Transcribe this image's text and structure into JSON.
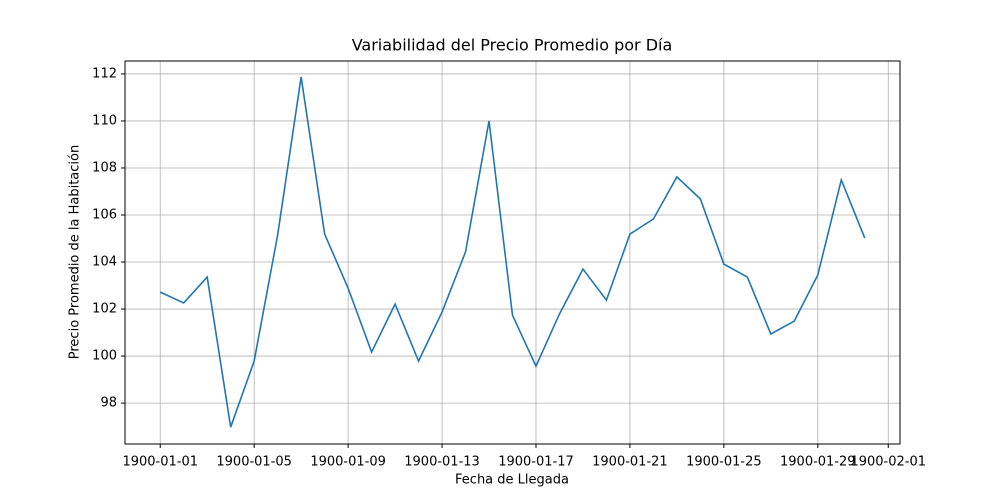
{
  "chart_data": {
    "type": "line",
    "title": "Variabilidad del Precio Promedio por Día",
    "xlabel": "Fecha de Llegada",
    "ylabel": "Precio Promedio de la Habitación",
    "x": [
      "1900-01-01",
      "1900-01-02",
      "1900-01-03",
      "1900-01-04",
      "1900-01-05",
      "1900-01-06",
      "1900-01-07",
      "1900-01-08",
      "1900-01-09",
      "1900-01-10",
      "1900-01-11",
      "1900-01-12",
      "1900-01-13",
      "1900-01-14",
      "1900-01-15",
      "1900-01-16",
      "1900-01-17",
      "1900-01-18",
      "1900-01-19",
      "1900-01-20",
      "1900-01-21",
      "1900-01-22",
      "1900-01-23",
      "1900-01-24",
      "1900-01-25",
      "1900-01-26",
      "1900-01-27",
      "1900-01-28",
      "1900-01-29",
      "1900-01-30",
      "1900-01-31"
    ],
    "series": [
      {
        "name": "Precio Promedio",
        "color": "#1f77b4",
        "values": [
          102.72,
          102.26,
          103.36,
          96.98,
          99.79,
          105.15,
          111.87,
          105.19,
          102.89,
          100.17,
          102.21,
          99.79,
          101.87,
          104.43,
          110.0,
          101.74,
          99.57,
          101.79,
          103.7,
          102.38,
          105.19,
          105.83,
          107.62,
          106.68,
          103.91,
          103.36,
          100.94,
          101.49,
          103.45,
          107.49,
          105.02
        ]
      }
    ],
    "xlim": [
      "1899-12-30T12:00",
      "1900-02-01T12:00"
    ],
    "xticks": [
      "1900-01-01",
      "1900-01-05",
      "1900-01-09",
      "1900-01-13",
      "1900-01-17",
      "1900-01-21",
      "1900-01-25",
      "1900-01-29",
      "1900-02-01"
    ],
    "ylim": [
      96.26,
      112.55
    ],
    "yticks": [
      98,
      100,
      102,
      104,
      106,
      108,
      110,
      112
    ],
    "grid": true
  }
}
